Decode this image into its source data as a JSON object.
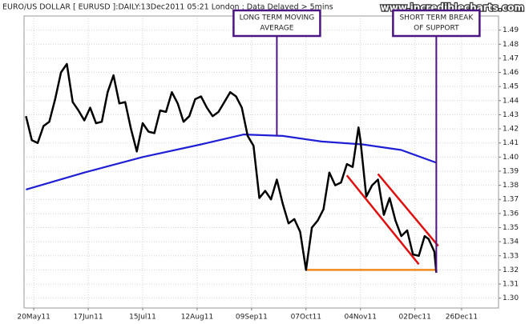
{
  "chart_data": {
    "type": "line",
    "title": "EURO/US DOLLAR [ EURUSD ]:DAILY:13Dec2011 05:21 London : Data Delayed > 5mins",
    "source": "www.incrediblecharts.com",
    "xlim": [
      "2011-05-15",
      "2012-01-14"
    ],
    "ylim": [
      1.293,
      1.5
    ],
    "grid": true,
    "xticks": [
      {
        "value": "2011-05-20",
        "label": "20May11"
      },
      {
        "value": "2011-06-17",
        "label": "17Jun11"
      },
      {
        "value": "2011-07-15",
        "label": "15Jul11"
      },
      {
        "value": "2011-08-12",
        "label": "12Aug11"
      },
      {
        "value": "2011-09-09",
        "label": "09Sep11"
      },
      {
        "value": "2011-10-07",
        "label": "07Oct11"
      },
      {
        "value": "2011-11-04",
        "label": "04Nov11"
      },
      {
        "value": "2011-12-02",
        "label": "02Dec11"
      },
      {
        "value": "2011-12-26",
        "label": "26Dec11"
      }
    ],
    "yticks": [
      {
        "value": 1.3,
        "label": "1.30"
      },
      1.31,
      1.32,
      1.33,
      1.34,
      1.35,
      1.36,
      1.37,
      1.38,
      1.39,
      {
        "value": 1.4,
        "label": "1.40"
      },
      1.41,
      1.42,
      1.43,
      1.44,
      1.45,
      1.46,
      1.47,
      1.48,
      1.49
    ],
    "series": [
      {
        "color": "#000000",
        "x": [
          "2011-05-16",
          "2011-05-19",
          "2011-05-22",
          "2011-05-25",
          "2011-05-28",
          "2011-05-31",
          "2011-06-03",
          "2011-06-06",
          "2011-06-09",
          "2011-06-12",
          "2011-06-15",
          "2011-06-18",
          "2011-06-21",
          "2011-06-24",
          "2011-06-27",
          "2011-06-30",
          "2011-07-03",
          "2011-07-06",
          "2011-07-09",
          "2011-07-12",
          "2011-07-15",
          "2011-07-18",
          "2011-07-21",
          "2011-07-24",
          "2011-07-27",
          "2011-07-30",
          "2011-08-02",
          "2011-08-05",
          "2011-08-08",
          "2011-08-11",
          "2011-08-14",
          "2011-08-17",
          "2011-08-20",
          "2011-08-23",
          "2011-08-26",
          "2011-08-29",
          "2011-09-01",
          "2011-09-04",
          "2011-09-07",
          "2011-09-10",
          "2011-09-13",
          "2011-09-16",
          "2011-09-19",
          "2011-09-22",
          "2011-09-25",
          "2011-09-28",
          "2011-10-01",
          "2011-10-04",
          "2011-10-07",
          "2011-10-10",
          "2011-10-13",
          "2011-10-16",
          "2011-10-19",
          "2011-10-22",
          "2011-10-25",
          "2011-10-28",
          "2011-10-31",
          "2011-11-03",
          "2011-11-04",
          "2011-11-07",
          "2011-11-10",
          "2011-11-13",
          "2011-11-16",
          "2011-11-19",
          "2011-11-22",
          "2011-11-25",
          "2011-11-28",
          "2011-12-01",
          "2011-12-04",
          "2011-12-07",
          "2011-12-09",
          "2011-12-12",
          "2011-12-13"
        ],
        "values": [
          1.429,
          1.412,
          1.41,
          1.422,
          1.425,
          1.441,
          1.46,
          1.466,
          1.439,
          1.433,
          1.426,
          1.435,
          1.424,
          1.425,
          1.446,
          1.458,
          1.438,
          1.439,
          1.42,
          1.404,
          1.424,
          1.418,
          1.417,
          1.433,
          1.432,
          1.446,
          1.438,
          1.425,
          1.429,
          1.441,
          1.443,
          1.435,
          1.429,
          1.432,
          1.439,
          1.446,
          1.443,
          1.435,
          1.415,
          1.408,
          1.371,
          1.376,
          1.37,
          1.384,
          1.367,
          1.353,
          1.356,
          1.347,
          1.32,
          1.35,
          1.355,
          1.363,
          1.389,
          1.38,
          1.382,
          1.395,
          1.393,
          1.421,
          1.412,
          1.372,
          1.38,
          1.384,
          1.359,
          1.371,
          1.355,
          1.344,
          1.348,
          1.331,
          1.33,
          1.344,
          1.342,
          1.333,
          1.318
        ]
      },
      {
        "color": "#1f1fd6",
        "x": [
          "2011-05-16",
          "2011-06-15",
          "2011-07-15",
          "2011-08-14",
          "2011-09-05",
          "2011-09-25",
          "2011-10-15",
          "2011-11-05",
          "2011-11-25",
          "2011-12-13"
        ],
        "values": [
          1.377,
          1.389,
          1.4,
          1.409,
          1.416,
          1.415,
          1.411,
          1.409,
          1.405,
          1.396
        ]
      }
    ],
    "trendlines": [
      {
        "color": "#e01010",
        "from": {
          "x": "2011-11-13",
          "y": 1.388
        },
        "to": {
          "x": "2011-12-14",
          "y": 1.337
        }
      },
      {
        "color": "#e01010",
        "from": {
          "x": "2011-10-28",
          "y": 1.387
        },
        "to": {
          "x": "2011-12-04",
          "y": 1.324
        }
      },
      {
        "color": "#f08a1c",
        "from": {
          "x": "2011-10-07",
          "y": 1.32
        },
        "to": {
          "x": "2011-12-13",
          "y": 1.32
        }
      }
    ],
    "annotations": [
      {
        "lines": [
          "LONG TERM MOVING",
          "AVERAGE"
        ],
        "point": {
          "x": "2011-09-22",
          "y": 1.415
        }
      },
      {
        "lines": [
          "SHORT TERM BREAK",
          "OF SUPPORT"
        ],
        "point": {
          "x": "2011-12-13",
          "y": 1.318
        }
      }
    ]
  }
}
